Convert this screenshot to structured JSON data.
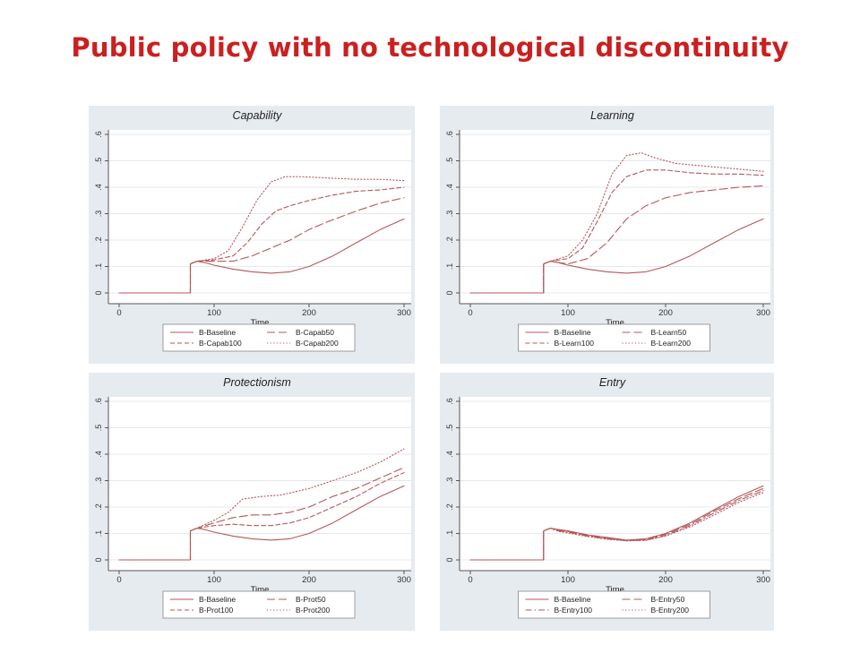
{
  "slide": {
    "title": "Public policy with no technological discontinuity"
  },
  "colors": {
    "line": "#b5575a",
    "panel_bg": "#e6ebf0",
    "plot_bg": "#ffffff",
    "grid": "#e4e8ec",
    "axis": "#555555",
    "title_red": "#cc1f1f"
  },
  "chart_data": [
    {
      "type": "line",
      "title": "Capability",
      "xlabel": "Time",
      "ylabel": "",
      "xlim": [
        0,
        300
      ],
      "ylim": [
        0,
        0.6
      ],
      "xticks": [
        "0",
        "100",
        "200",
        "300"
      ],
      "yticks": [
        "0",
        ".1",
        ".2",
        ".3",
        ".4",
        ".5",
        ".6"
      ],
      "grid": true,
      "legend_position": "bottom",
      "series": [
        {
          "name": "B-Baseline",
          "style": "solid",
          "points": [
            [
              0,
              0
            ],
            [
              75,
              0
            ],
            [
              75,
              0.11
            ],
            [
              82,
              0.12
            ],
            [
              90,
              0.115
            ],
            [
              100,
              0.105
            ],
            [
              120,
              0.09
            ],
            [
              140,
              0.08
            ],
            [
              160,
              0.075
            ],
            [
              180,
              0.08
            ],
            [
              200,
              0.1
            ],
            [
              225,
              0.14
            ],
            [
              250,
              0.19
            ],
            [
              275,
              0.24
            ],
            [
              300,
              0.28
            ]
          ]
        },
        {
          "name": "B-Capab50",
          "style": "longdash",
          "points": [
            [
              0,
              0
            ],
            [
              75,
              0
            ],
            [
              75,
              0.11
            ],
            [
              82,
              0.12
            ],
            [
              100,
              0.12
            ],
            [
              120,
              0.12
            ],
            [
              140,
              0.14
            ],
            [
              160,
              0.17
            ],
            [
              180,
              0.2
            ],
            [
              200,
              0.24
            ],
            [
              220,
              0.27
            ],
            [
              250,
              0.31
            ],
            [
              275,
              0.34
            ],
            [
              300,
              0.36
            ]
          ]
        },
        {
          "name": "B-Capab100",
          "style": "dash",
          "points": [
            [
              0,
              0
            ],
            [
              75,
              0
            ],
            [
              75,
              0.11
            ],
            [
              82,
              0.12
            ],
            [
              100,
              0.125
            ],
            [
              120,
              0.14
            ],
            [
              135,
              0.19
            ],
            [
              150,
              0.26
            ],
            [
              165,
              0.31
            ],
            [
              180,
              0.33
            ],
            [
              200,
              0.35
            ],
            [
              225,
              0.37
            ],
            [
              250,
              0.385
            ],
            [
              275,
              0.39
            ],
            [
              300,
              0.4
            ]
          ]
        },
        {
          "name": "B-Capab200",
          "style": "dot",
          "points": [
            [
              0,
              0
            ],
            [
              75,
              0
            ],
            [
              75,
              0.11
            ],
            [
              82,
              0.12
            ],
            [
              100,
              0.13
            ],
            [
              115,
              0.16
            ],
            [
              130,
              0.25
            ],
            [
              145,
              0.35
            ],
            [
              160,
              0.42
            ],
            [
              175,
              0.44
            ],
            [
              190,
              0.44
            ],
            [
              220,
              0.435
            ],
            [
              250,
              0.43
            ],
            [
              275,
              0.43
            ],
            [
              300,
              0.425
            ]
          ]
        }
      ]
    },
    {
      "type": "line",
      "title": "Learning",
      "xlabel": "Time",
      "ylabel": "",
      "xlim": [
        0,
        300
      ],
      "ylim": [
        0,
        0.6
      ],
      "xticks": [
        "0",
        "100",
        "200",
        "300"
      ],
      "yticks": [
        "0",
        ".1",
        ".2",
        ".3",
        ".4",
        ".5",
        ".6"
      ],
      "grid": true,
      "legend_position": "bottom",
      "series": [
        {
          "name": "B-Baseline",
          "style": "solid",
          "points": [
            [
              0,
              0
            ],
            [
              75,
              0
            ],
            [
              75,
              0.11
            ],
            [
              82,
              0.12
            ],
            [
              90,
              0.115
            ],
            [
              100,
              0.105
            ],
            [
              120,
              0.09
            ],
            [
              140,
              0.08
            ],
            [
              160,
              0.075
            ],
            [
              180,
              0.08
            ],
            [
              200,
              0.1
            ],
            [
              225,
              0.14
            ],
            [
              250,
              0.19
            ],
            [
              275,
              0.24
            ],
            [
              300,
              0.28
            ]
          ]
        },
        {
          "name": "B-Learn50",
          "style": "longdash",
          "points": [
            [
              0,
              0
            ],
            [
              75,
              0
            ],
            [
              75,
              0.11
            ],
            [
              82,
              0.12
            ],
            [
              100,
              0.11
            ],
            [
              120,
              0.13
            ],
            [
              140,
              0.19
            ],
            [
              160,
              0.28
            ],
            [
              180,
              0.33
            ],
            [
              200,
              0.36
            ],
            [
              225,
              0.38
            ],
            [
              250,
              0.39
            ],
            [
              275,
              0.4
            ],
            [
              300,
              0.405
            ]
          ]
        },
        {
          "name": "B-Learn100",
          "style": "dash",
          "points": [
            [
              0,
              0
            ],
            [
              75,
              0
            ],
            [
              75,
              0.11
            ],
            [
              82,
              0.12
            ],
            [
              100,
              0.13
            ],
            [
              115,
              0.17
            ],
            [
              130,
              0.27
            ],
            [
              145,
              0.38
            ],
            [
              160,
              0.44
            ],
            [
              180,
              0.465
            ],
            [
              200,
              0.465
            ],
            [
              225,
              0.455
            ],
            [
              250,
              0.45
            ],
            [
              275,
              0.45
            ],
            [
              300,
              0.445
            ]
          ]
        },
        {
          "name": "B-Learn200",
          "style": "dot",
          "points": [
            [
              0,
              0
            ],
            [
              75,
              0
            ],
            [
              75,
              0.11
            ],
            [
              82,
              0.12
            ],
            [
              100,
              0.14
            ],
            [
              115,
              0.2
            ],
            [
              130,
              0.3
            ],
            [
              145,
              0.45
            ],
            [
              160,
              0.52
            ],
            [
              175,
              0.53
            ],
            [
              190,
              0.51
            ],
            [
              210,
              0.49
            ],
            [
              240,
              0.48
            ],
            [
              270,
              0.47
            ],
            [
              300,
              0.46
            ]
          ]
        }
      ]
    },
    {
      "type": "line",
      "title": "Protectionism",
      "xlabel": "Time",
      "ylabel": "",
      "xlim": [
        0,
        300
      ],
      "ylim": [
        0,
        0.6
      ],
      "xticks": [
        "0",
        "100",
        "200",
        "300"
      ],
      "yticks": [
        "0",
        ".1",
        ".2",
        ".3",
        ".4",
        ".5",
        ".6"
      ],
      "grid": true,
      "legend_position": "bottom",
      "series": [
        {
          "name": "B-Baseline",
          "style": "solid",
          "points": [
            [
              0,
              0
            ],
            [
              75,
              0
            ],
            [
              75,
              0.11
            ],
            [
              82,
              0.12
            ],
            [
              90,
              0.115
            ],
            [
              100,
              0.105
            ],
            [
              120,
              0.09
            ],
            [
              140,
              0.08
            ],
            [
              160,
              0.075
            ],
            [
              180,
              0.08
            ],
            [
              200,
              0.1
            ],
            [
              225,
              0.14
            ],
            [
              250,
              0.19
            ],
            [
              275,
              0.24
            ],
            [
              300,
              0.28
            ]
          ]
        },
        {
          "name": "B-Prot50",
          "style": "longdash",
          "points": [
            [
              0,
              0
            ],
            [
              75,
              0
            ],
            [
              75,
              0.11
            ],
            [
              82,
              0.12
            ],
            [
              100,
              0.14
            ],
            [
              120,
              0.16
            ],
            [
              140,
              0.17
            ],
            [
              160,
              0.17
            ],
            [
              180,
              0.18
            ],
            [
              200,
              0.2
            ],
            [
              225,
              0.24
            ],
            [
              250,
              0.27
            ],
            [
              275,
              0.31
            ],
            [
              300,
              0.35
            ]
          ]
        },
        {
          "name": "B-Prot100",
          "style": "dash",
          "points": [
            [
              0,
              0
            ],
            [
              75,
              0
            ],
            [
              75,
              0.11
            ],
            [
              82,
              0.12
            ],
            [
              100,
              0.13
            ],
            [
              120,
              0.135
            ],
            [
              140,
              0.13
            ],
            [
              160,
              0.13
            ],
            [
              180,
              0.14
            ],
            [
              200,
              0.16
            ],
            [
              225,
              0.2
            ],
            [
              250,
              0.24
            ],
            [
              275,
              0.29
            ],
            [
              300,
              0.33
            ]
          ]
        },
        {
          "name": "B-Prot200",
          "style": "dot",
          "points": [
            [
              0,
              0
            ],
            [
              75,
              0
            ],
            [
              75,
              0.11
            ],
            [
              82,
              0.12
            ],
            [
              100,
              0.15
            ],
            [
              115,
              0.18
            ],
            [
              130,
              0.23
            ],
            [
              150,
              0.24
            ],
            [
              170,
              0.245
            ],
            [
              200,
              0.27
            ],
            [
              225,
              0.3
            ],
            [
              250,
              0.33
            ],
            [
              275,
              0.37
            ],
            [
              300,
              0.42
            ]
          ]
        }
      ]
    },
    {
      "type": "line",
      "title": "Entry",
      "xlabel": "Time",
      "ylabel": "",
      "xlim": [
        0,
        300
      ],
      "ylim": [
        0,
        0.6
      ],
      "xticks": [
        "0",
        "100",
        "200",
        "300"
      ],
      "yticks": [
        "0",
        ".1",
        ".2",
        ".3",
        ".4",
        ".5",
        ".6"
      ],
      "grid": true,
      "legend_position": "bottom",
      "series": [
        {
          "name": "B-Baseline",
          "style": "solid",
          "points": [
            [
              0,
              0
            ],
            [
              75,
              0
            ],
            [
              75,
              0.11
            ],
            [
              82,
              0.12
            ],
            [
              90,
              0.115
            ],
            [
              100,
              0.11
            ],
            [
              120,
              0.095
            ],
            [
              140,
              0.085
            ],
            [
              160,
              0.075
            ],
            [
              180,
              0.08
            ],
            [
              200,
              0.1
            ],
            [
              225,
              0.14
            ],
            [
              250,
              0.19
            ],
            [
              275,
              0.24
            ],
            [
              300,
              0.28
            ]
          ]
        },
        {
          "name": "B-Entry50",
          "style": "longdash",
          "points": [
            [
              0,
              0
            ],
            [
              75,
              0
            ],
            [
              75,
              0.11
            ],
            [
              82,
              0.12
            ],
            [
              90,
              0.112
            ],
            [
              100,
              0.107
            ],
            [
              120,
              0.093
            ],
            [
              140,
              0.082
            ],
            [
              160,
              0.074
            ],
            [
              180,
              0.078
            ],
            [
              200,
              0.097
            ],
            [
              225,
              0.135
            ],
            [
              250,
              0.185
            ],
            [
              275,
              0.232
            ],
            [
              300,
              0.27
            ]
          ]
        },
        {
          "name": "B-Entry100",
          "style": "dashdot",
          "points": [
            [
              0,
              0
            ],
            [
              75,
              0
            ],
            [
              75,
              0.11
            ],
            [
              82,
              0.12
            ],
            [
              90,
              0.11
            ],
            [
              100,
              0.105
            ],
            [
              120,
              0.09
            ],
            [
              140,
              0.08
            ],
            [
              160,
              0.073
            ],
            [
              180,
              0.075
            ],
            [
              200,
              0.093
            ],
            [
              225,
              0.13
            ],
            [
              250,
              0.178
            ],
            [
              275,
              0.225
            ],
            [
              300,
              0.262
            ]
          ]
        },
        {
          "name": "B-Entry200",
          "style": "dot",
          "points": [
            [
              0,
              0
            ],
            [
              75,
              0
            ],
            [
              75,
              0.11
            ],
            [
              82,
              0.12
            ],
            [
              90,
              0.108
            ],
            [
              100,
              0.102
            ],
            [
              120,
              0.088
            ],
            [
              140,
              0.078
            ],
            [
              160,
              0.072
            ],
            [
              180,
              0.074
            ],
            [
              200,
              0.09
            ],
            [
              225,
              0.125
            ],
            [
              250,
              0.17
            ],
            [
              275,
              0.218
            ],
            [
              300,
              0.255
            ]
          ]
        }
      ]
    }
  ]
}
